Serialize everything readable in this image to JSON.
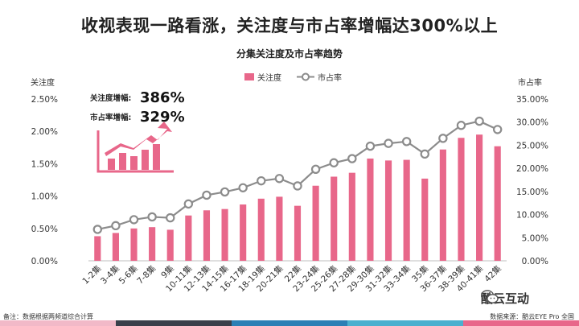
{
  "title": "收视表现一路看涨，关注度与市占率增幅达300%以上",
  "chart_data": {
    "type": "bar+line",
    "title": "分集关注度及市占率趋势",
    "categories": [
      "1-2集",
      "3-4集",
      "5-6集",
      "7-8集",
      "9集",
      "10-11集",
      "12-13集",
      "14-15集",
      "16-17集",
      "18-19集",
      "20-21集",
      "22集",
      "23-24集",
      "25-26集",
      "27-28集",
      "29-30集",
      "31-32集",
      "33-34集",
      "35集",
      "36-37集",
      "38-39集",
      "40-41集",
      "42集"
    ],
    "series": [
      {
        "name": "关注度",
        "type": "bar",
        "axis": "left",
        "color": "#e8678a",
        "values": [
          0.38,
          0.43,
          0.5,
          0.52,
          0.48,
          0.7,
          0.78,
          0.8,
          0.87,
          0.96,
          0.99,
          0.85,
          1.16,
          1.3,
          1.36,
          1.58,
          1.55,
          1.56,
          1.27,
          1.72,
          1.9,
          1.95,
          1.77
        ]
      },
      {
        "name": "市占率",
        "type": "line",
        "axis": "right",
        "color": "#8c8c8c",
        "values": [
          6.8,
          7.6,
          8.9,
          9.5,
          9.3,
          12.3,
          14.2,
          14.9,
          15.8,
          17.3,
          17.8,
          16.2,
          19.8,
          21.2,
          22.1,
          24.8,
          25.4,
          25.8,
          23.1,
          26.5,
          29.3,
          30.2,
          28.4
        ]
      }
    ],
    "y_left": {
      "label": "关注度",
      "ticks": [
        "0.00%",
        "0.50%",
        "1.00%",
        "1.50%",
        "2.00%",
        "2.50%"
      ],
      "min": 0,
      "max": 2.5
    },
    "y_right": {
      "label": "市占率",
      "ticks": [
        "0.00%",
        "5.00%",
        "10.00%",
        "15.00%",
        "20.00%",
        "25.00%",
        "30.00%",
        "35.00%"
      ],
      "min": 0,
      "max": 35
    },
    "legend_position": "top-center"
  },
  "annotations": {
    "attention_label": "关注度增幅:",
    "attention_value": "386%",
    "share_label": "市占率增幅:",
    "share_value": "329%"
  },
  "footer": {
    "note": "备注：数据根据两频道综合计算",
    "source": "数据来源：酷云EYE Pro 全国",
    "brand": "酷云互动",
    "bar_colors": [
      "#f2b9c8",
      "#3a3f4a",
      "#2b7fb5",
      "#4ab0cf",
      "#e8678a"
    ]
  }
}
